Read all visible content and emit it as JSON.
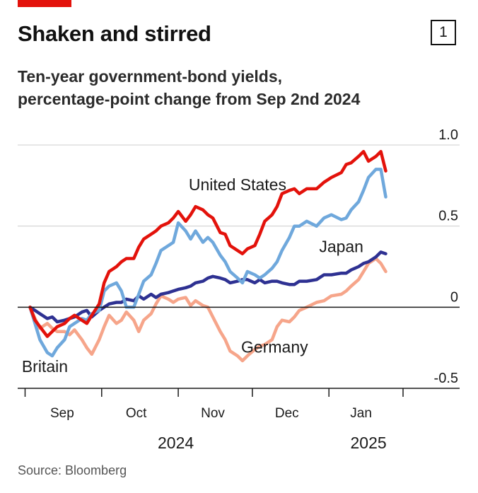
{
  "header": {
    "title": "Shaken and stirred",
    "badge": "1",
    "subtitle_line1": "Ten-year government-bond yields,",
    "subtitle_line2": "percentage-point change from Sep 2nd 2024",
    "source": "Source: Bloomberg"
  },
  "colors": {
    "accent": "#e3120b",
    "united_states": "#e3120b",
    "britain": "#6fa8dc",
    "japan": "#2e3192",
    "germany": "#f6a58a",
    "grid": "#cccccc",
    "zero_line": "#1a1a1a"
  },
  "chart_data": {
    "type": "line",
    "title": "Shaken and stirred",
    "subtitle": "Ten-year government-bond yields, percentage-point change from Sep 2nd 2024",
    "source": "Source: Bloomberg",
    "xlabel": "",
    "ylabel": "",
    "ylim": [
      -0.5,
      1.0
    ],
    "xlim": [
      "2024-08-28",
      "2025-01-31"
    ],
    "yticks": [
      {
        "value": 1.0,
        "label": "1.0"
      },
      {
        "value": 0.5,
        "label": "0.5"
      },
      {
        "value": 0,
        "label": "0"
      },
      {
        "value": -0.5,
        "label": "-0.5"
      }
    ],
    "grid": true,
    "legend": "direct labels",
    "month_labels": [
      {
        "label": "Sep",
        "x": "2024-09-15"
      },
      {
        "label": "Oct",
        "x": "2024-10-15"
      },
      {
        "label": "Nov",
        "x": "2024-11-15"
      },
      {
        "label": "Dec",
        "x": "2024-12-15"
      },
      {
        "label": "Jan",
        "x": "2025-01-14"
      }
    ],
    "month_boundaries": [
      "2024-08-31",
      "2024-10-01",
      "2024-11-01",
      "2024-12-01",
      "2025-01-01",
      "2025-01-31"
    ],
    "year_labels": [
      {
        "label": "2024",
        "x": "2024-10-31"
      },
      {
        "label": "2025",
        "x": "2025-01-17"
      }
    ],
    "series": [
      {
        "name": "Germany",
        "color": "#f6a58a",
        "label_anchor": {
          "x": "2024-12-10",
          "y": -0.28
        },
        "x": [
          "2024-09-02",
          "2024-09-04",
          "2024-09-06",
          "2024-09-09",
          "2024-09-11",
          "2024-09-13",
          "2024-09-16",
          "2024-09-18",
          "2024-09-20",
          "2024-09-23",
          "2024-09-25",
          "2024-09-27",
          "2024-09-30",
          "2024-10-02",
          "2024-10-04",
          "2024-10-07",
          "2024-10-09",
          "2024-10-11",
          "2024-10-14",
          "2024-10-16",
          "2024-10-18",
          "2024-10-21",
          "2024-10-23",
          "2024-10-25",
          "2024-10-28",
          "2024-10-30",
          "2024-11-01",
          "2024-11-04",
          "2024-11-06",
          "2024-11-08",
          "2024-11-11",
          "2024-11-13",
          "2024-11-15",
          "2024-11-18",
          "2024-11-20",
          "2024-11-22",
          "2024-11-25",
          "2024-11-27",
          "2024-11-29",
          "2024-12-02",
          "2024-12-04",
          "2024-12-06",
          "2024-12-09",
          "2024-12-11",
          "2024-12-13",
          "2024-12-16",
          "2024-12-18",
          "2024-12-20",
          "2024-12-23",
          "2024-12-27",
          "2024-12-30",
          "2025-01-02",
          "2025-01-06",
          "2025-01-08",
          "2025-01-10",
          "2025-01-13",
          "2025-01-15",
          "2025-01-17",
          "2025-01-20",
          "2025-01-22",
          "2025-01-24"
        ],
        "values": [
          0,
          -0.07,
          -0.13,
          -0.1,
          -0.13,
          -0.15,
          -0.15,
          -0.17,
          -0.14,
          -0.2,
          -0.25,
          -0.29,
          -0.2,
          -0.12,
          -0.05,
          -0.1,
          -0.08,
          -0.03,
          -0.08,
          -0.15,
          -0.08,
          -0.04,
          0.02,
          0.07,
          0.05,
          0.03,
          0.05,
          0.06,
          0.01,
          0.04,
          0.01,
          0.0,
          -0.06,
          -0.15,
          -0.2,
          -0.27,
          -0.3,
          -0.33,
          -0.3,
          -0.26,
          -0.24,
          -0.23,
          -0.2,
          -0.12,
          -0.08,
          -0.09,
          -0.06,
          -0.02,
          0.0,
          0.03,
          0.04,
          0.07,
          0.08,
          0.1,
          0.13,
          0.17,
          0.22,
          0.27,
          0.3,
          0.27,
          0.22
        ]
      },
      {
        "name": "Japan",
        "color": "#2e3192",
        "label_anchor": {
          "x": "2025-01-06",
          "y": 0.34
        },
        "x": [
          "2024-09-02",
          "2024-09-04",
          "2024-09-06",
          "2024-09-09",
          "2024-09-11",
          "2024-09-13",
          "2024-09-16",
          "2024-09-18",
          "2024-09-20",
          "2024-09-23",
          "2024-09-25",
          "2024-09-27",
          "2024-09-30",
          "2024-10-02",
          "2024-10-04",
          "2024-10-07",
          "2024-10-09",
          "2024-10-11",
          "2024-10-14",
          "2024-10-16",
          "2024-10-18",
          "2024-10-21",
          "2024-10-23",
          "2024-10-25",
          "2024-10-28",
          "2024-10-30",
          "2024-11-01",
          "2024-11-04",
          "2024-11-06",
          "2024-11-08",
          "2024-11-11",
          "2024-11-13",
          "2024-11-15",
          "2024-11-18",
          "2024-11-20",
          "2024-11-22",
          "2024-11-25",
          "2024-11-27",
          "2024-11-29",
          "2024-12-02",
          "2024-12-04",
          "2024-12-06",
          "2024-12-09",
          "2024-12-11",
          "2024-12-13",
          "2024-12-16",
          "2024-12-18",
          "2024-12-20",
          "2024-12-23",
          "2024-12-27",
          "2024-12-30",
          "2025-01-02",
          "2025-01-06",
          "2025-01-08",
          "2025-01-10",
          "2025-01-13",
          "2025-01-15",
          "2025-01-17",
          "2025-01-20",
          "2025-01-22",
          "2025-01-24"
        ],
        "values": [
          0,
          -0.02,
          -0.04,
          -0.07,
          -0.06,
          -0.09,
          -0.08,
          -0.07,
          -0.06,
          -0.03,
          -0.02,
          -0.06,
          -0.02,
          0.0,
          0.02,
          0.03,
          0.03,
          0.05,
          0.04,
          0.07,
          0.05,
          0.08,
          0.06,
          0.08,
          0.09,
          0.1,
          0.11,
          0.12,
          0.13,
          0.15,
          0.16,
          0.18,
          0.19,
          0.18,
          0.17,
          0.15,
          0.16,
          0.17,
          0.17,
          0.15,
          0.17,
          0.15,
          0.16,
          0.16,
          0.15,
          0.14,
          0.14,
          0.16,
          0.16,
          0.17,
          0.2,
          0.2,
          0.21,
          0.21,
          0.23,
          0.25,
          0.27,
          0.28,
          0.31,
          0.34,
          0.33
        ]
      },
      {
        "name": "Britain",
        "color": "#6fa8dc",
        "label_anchor": {
          "x": "2024-09-08",
          "y": -0.4
        },
        "x": [
          "2024-09-02",
          "2024-09-04",
          "2024-09-06",
          "2024-09-09",
          "2024-09-11",
          "2024-09-13",
          "2024-09-16",
          "2024-09-18",
          "2024-09-20",
          "2024-09-23",
          "2024-09-25",
          "2024-09-27",
          "2024-09-30",
          "2024-10-02",
          "2024-10-04",
          "2024-10-07",
          "2024-10-09",
          "2024-10-11",
          "2024-10-14",
          "2024-10-16",
          "2024-10-18",
          "2024-10-21",
          "2024-10-23",
          "2024-10-25",
          "2024-10-28",
          "2024-10-30",
          "2024-11-01",
          "2024-11-04",
          "2024-11-06",
          "2024-11-08",
          "2024-11-11",
          "2024-11-13",
          "2024-11-15",
          "2024-11-18",
          "2024-11-20",
          "2024-11-22",
          "2024-11-25",
          "2024-11-27",
          "2024-11-29",
          "2024-12-02",
          "2024-12-04",
          "2024-12-06",
          "2024-12-09",
          "2024-12-11",
          "2024-12-13",
          "2024-12-16",
          "2024-12-18",
          "2024-12-20",
          "2024-12-23",
          "2024-12-27",
          "2024-12-30",
          "2025-01-02",
          "2025-01-06",
          "2025-01-08",
          "2025-01-10",
          "2025-01-13",
          "2025-01-15",
          "2025-01-17",
          "2025-01-20",
          "2025-01-22",
          "2025-01-24"
        ],
        "values": [
          0,
          -0.1,
          -0.2,
          -0.28,
          -0.3,
          -0.25,
          -0.2,
          -0.12,
          -0.1,
          -0.07,
          -0.08,
          -0.04,
          -0.02,
          0.1,
          0.13,
          0.15,
          0.1,
          0.0,
          0.0,
          0.08,
          0.16,
          0.2,
          0.27,
          0.35,
          0.38,
          0.4,
          0.52,
          0.47,
          0.42,
          0.47,
          0.4,
          0.43,
          0.4,
          0.32,
          0.28,
          0.22,
          0.18,
          0.15,
          0.22,
          0.2,
          0.18,
          0.2,
          0.24,
          0.28,
          0.35,
          0.43,
          0.5,
          0.5,
          0.53,
          0.5,
          0.55,
          0.57,
          0.54,
          0.55,
          0.6,
          0.65,
          0.72,
          0.8,
          0.85,
          0.85,
          0.68
        ]
      },
      {
        "name": "United States",
        "color": "#e3120b",
        "label_anchor": {
          "x": "2024-11-25",
          "y": 0.72
        },
        "x": [
          "2024-09-02",
          "2024-09-04",
          "2024-09-06",
          "2024-09-09",
          "2024-09-11",
          "2024-09-13",
          "2024-09-16",
          "2024-09-18",
          "2024-09-20",
          "2024-09-23",
          "2024-09-25",
          "2024-09-27",
          "2024-09-30",
          "2024-10-02",
          "2024-10-04",
          "2024-10-07",
          "2024-10-09",
          "2024-10-11",
          "2024-10-14",
          "2024-10-16",
          "2024-10-18",
          "2024-10-21",
          "2024-10-23",
          "2024-10-25",
          "2024-10-28",
          "2024-10-30",
          "2024-11-01",
          "2024-11-04",
          "2024-11-06",
          "2024-11-08",
          "2024-11-11",
          "2024-11-13",
          "2024-11-15",
          "2024-11-18",
          "2024-11-20",
          "2024-11-22",
          "2024-11-25",
          "2024-11-27",
          "2024-11-29",
          "2024-12-02",
          "2024-12-04",
          "2024-12-06",
          "2024-12-09",
          "2024-12-11",
          "2024-12-13",
          "2024-12-16",
          "2024-12-18",
          "2024-12-20",
          "2024-12-23",
          "2024-12-27",
          "2024-12-30",
          "2025-01-02",
          "2025-01-06",
          "2025-01-08",
          "2025-01-10",
          "2025-01-13",
          "2025-01-15",
          "2025-01-17",
          "2025-01-20",
          "2025-01-22",
          "2025-01-24"
        ],
        "values": [
          0,
          -0.08,
          -0.12,
          -0.18,
          -0.15,
          -0.12,
          -0.1,
          -0.07,
          -0.05,
          -0.08,
          -0.1,
          -0.05,
          0.02,
          0.15,
          0.22,
          0.25,
          0.28,
          0.3,
          0.3,
          0.37,
          0.42,
          0.45,
          0.47,
          0.5,
          0.52,
          0.55,
          0.59,
          0.53,
          0.57,
          0.62,
          0.6,
          0.57,
          0.55,
          0.46,
          0.45,
          0.38,
          0.35,
          0.33,
          0.36,
          0.38,
          0.45,
          0.53,
          0.57,
          0.62,
          0.7,
          0.72,
          0.73,
          0.7,
          0.73,
          0.73,
          0.77,
          0.8,
          0.83,
          0.88,
          0.89,
          0.93,
          0.96,
          0.9,
          0.93,
          0.96,
          0.84
        ]
      }
    ]
  }
}
